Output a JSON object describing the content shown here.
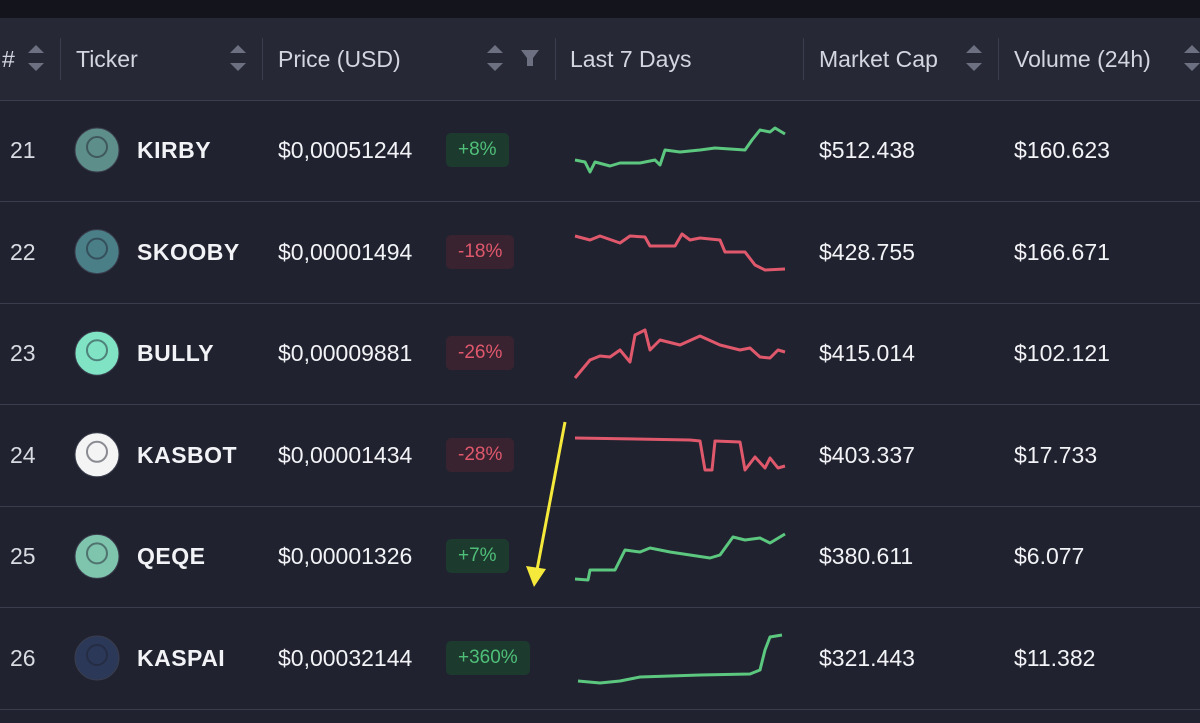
{
  "table": {
    "columns": [
      "#",
      "Ticker",
      "Price (USD)",
      "Last 7 Days",
      "Market Cap",
      "Volume (24h)"
    ],
    "rows": [
      {
        "rank": "21",
        "ticker": "KIRBY",
        "price": "$0,00051244",
        "change": "+8%",
        "market_cap": "$512.438",
        "volume": "$160.623"
      },
      {
        "rank": "22",
        "ticker": "SKOOBY",
        "price": "$0,00001494",
        "change": "-18%",
        "market_cap": "$428.755",
        "volume": "$166.671"
      },
      {
        "rank": "23",
        "ticker": "BULLY",
        "price": "$0,00009881",
        "change": "-26%",
        "market_cap": "$415.014",
        "volume": "$102.121"
      },
      {
        "rank": "24",
        "ticker": "KASBOT",
        "price": "$0,00001434",
        "change": "-28%",
        "market_cap": "$403.337",
        "volume": "$17.733"
      },
      {
        "rank": "25",
        "ticker": "QEQE",
        "price": "$0,00001326",
        "change": "+7%",
        "market_cap": "$380.611",
        "volume": "$6.077"
      },
      {
        "rank": "26",
        "ticker": "KASPAI",
        "price": "$0,00032144",
        "change": "+360%",
        "market_cap": "$321.443",
        "volume": "$11.382"
      }
    ]
  }
}
